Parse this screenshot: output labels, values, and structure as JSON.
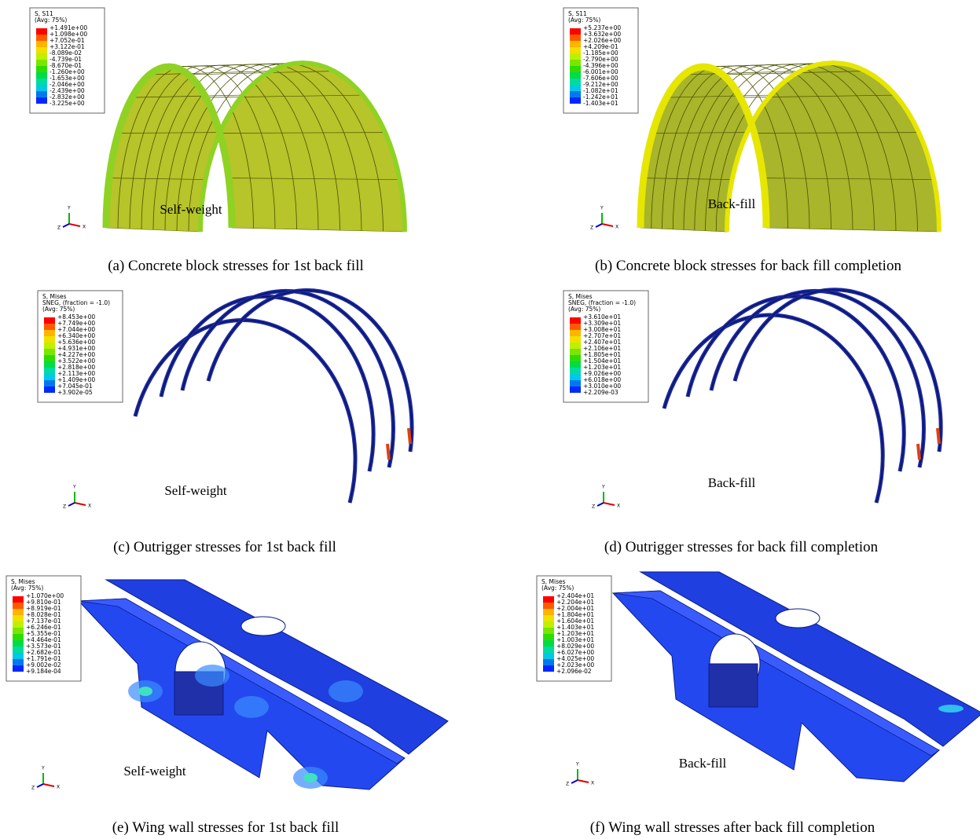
{
  "triad": {
    "y": "Y",
    "z": "Z",
    "x": "X"
  },
  "panels": [
    {
      "legend": {
        "title": [
          "S, S11",
          "(Avg: 75%)"
        ],
        "values": [
          "+1.491e+00",
          "+1.098e+00",
          "+7.052e-01",
          "+3.122e-01",
          "-8.089e-02",
          "-4.739e-01",
          "-8.670e-01",
          "-1.260e+00",
          "-1.653e+00",
          "-2.046e+00",
          "-2.439e+00",
          "-2.832e+00",
          "-3.225e+00"
        ]
      },
      "load": "Self-weight",
      "caption": "(a) Concrete block stresses for 1st back fill"
    },
    {
      "legend": {
        "title": [
          "S, S11",
          "(Avg: 75%)"
        ],
        "values": [
          "+5.237e+00",
          "+3.632e+00",
          "+2.026e+00",
          "+4.209e-01",
          "-1.185e+00",
          "-2.790e+00",
          "-4.396e+00",
          "-6.001e+00",
          "-7.606e+00",
          "-9.212e+00",
          "-1.082e+01",
          "-1.242e+01",
          "-1.403e+01"
        ]
      },
      "load": "Back-fill",
      "caption": "(b) Concrete block stresses for back fill completion"
    },
    {
      "legend": {
        "title": [
          "S, Mises",
          "SNEG, (fraction = -1.0)",
          "(Avg: 75%)"
        ],
        "values": [
          "+8.453e+00",
          "+7.749e+00",
          "+7.044e+00",
          "+6.340e+00",
          "+5.636e+00",
          "+4.931e+00",
          "+4.227e+00",
          "+3.522e+00",
          "+2.818e+00",
          "+2.113e+00",
          "+1.409e+00",
          "+7.045e-01",
          "+3.902e-05"
        ]
      },
      "load": "Self-weight",
      "caption": "(c) Outrigger stresses for 1st back fill"
    },
    {
      "legend": {
        "title": [
          "S, Mises",
          "SNEG, (fraction = -1.0)",
          "(Avg: 75%)"
        ],
        "values": [
          "+3.610e+01",
          "+3.309e+01",
          "+3.008e+01",
          "+2.707e+01",
          "+2.407e+01",
          "+2.106e+01",
          "+1.805e+01",
          "+1.504e+01",
          "+1.203e+01",
          "+9.026e+00",
          "+6.018e+00",
          "+3.010e+00",
          "+2.209e-03"
        ]
      },
      "load": "Back-fill",
      "caption": "(d) Outrigger stresses for back fill completion"
    },
    {
      "legend": {
        "title": [
          "S, Mises",
          "(Avg: 75%)"
        ],
        "values": [
          "+1.070e+00",
          "+9.810e-01",
          "+8.919e-01",
          "+8.028e-01",
          "+7.137e-01",
          "+6.246e-01",
          "+5.355e-01",
          "+4.464e-01",
          "+3.573e-01",
          "+2.682e-01",
          "+1.791e-01",
          "+9.002e-02",
          "+9.184e-04"
        ]
      },
      "load": "Self-weight",
      "caption": "(e) Wing wall stresses for 1st back fill"
    },
    {
      "legend": {
        "title": [
          "S, Mises",
          "(Avg: 75%)"
        ],
        "values": [
          "+2.404e+01",
          "+2.204e+01",
          "+2.004e+01",
          "+1.804e+01",
          "+1.604e+01",
          "+1.403e+01",
          "+1.203e+01",
          "+1.003e+01",
          "+8.029e+00",
          "+6.027e+00",
          "+4.025e+00",
          "+2.023e+00",
          "+2.096e-02"
        ]
      },
      "load": "Back-fill",
      "caption": "(f) Wing wall stresses after back fill completion"
    }
  ]
}
